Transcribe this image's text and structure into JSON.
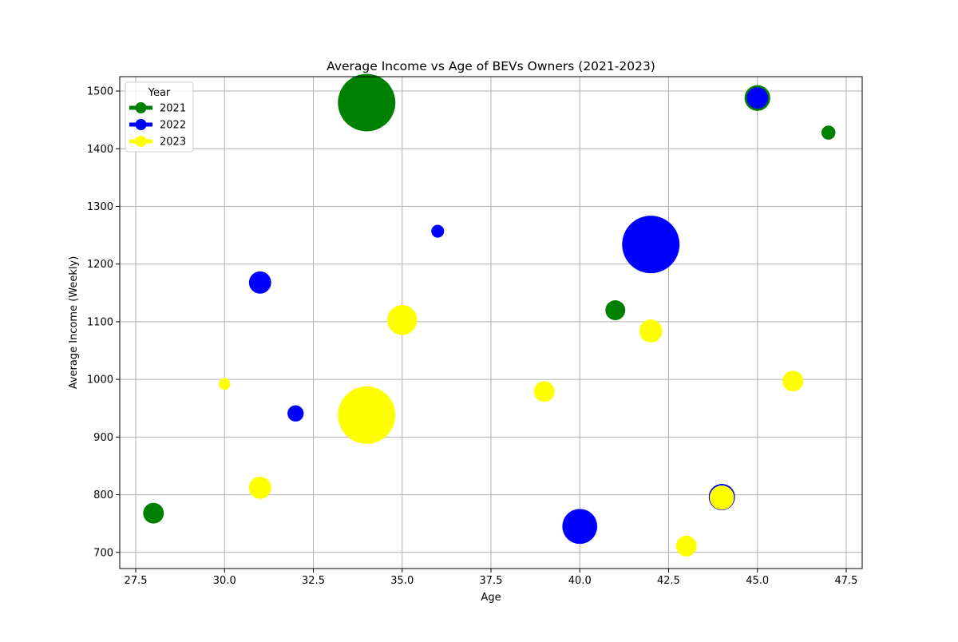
{
  "chart_data": {
    "type": "scatter",
    "title": "Average Income vs Age of BEVs Owners (2021-2023)",
    "xlabel": "Age",
    "ylabel": "Average Income (Weekly)",
    "xlim": [
      27.05,
      47.95
    ],
    "ylim": [
      672,
      1525
    ],
    "x_ticks": [
      27.5,
      30.0,
      32.5,
      35.0,
      37.5,
      40.0,
      42.5,
      45.0,
      47.5
    ],
    "x_tick_labels": [
      "27.5",
      "30.0",
      "32.5",
      "35.0",
      "37.5",
      "40.0",
      "42.5",
      "45.0",
      "47.5"
    ],
    "y_ticks": [
      700,
      800,
      900,
      1000,
      1100,
      1200,
      1300,
      1400,
      1500
    ],
    "y_tick_labels": [
      "700",
      "800",
      "900",
      "1000",
      "1100",
      "1200",
      "1300",
      "1400",
      "1500"
    ],
    "grid": true,
    "legend": {
      "title": "Year",
      "placement": "upper-left"
    },
    "series": [
      {
        "name": "2021",
        "color": "#008000",
        "points": [
          {
            "x": 28,
            "y": 768,
            "size": 0.13
          },
          {
            "x": 34,
            "y": 1480,
            "size": 1.0
          },
          {
            "x": 41,
            "y": 1120,
            "size": 0.12
          },
          {
            "x": 45,
            "y": 1488,
            "size": 0.2
          },
          {
            "x": 47,
            "y": 1428,
            "size": 0.06
          }
        ]
      },
      {
        "name": "2022",
        "color": "#0000ff",
        "points": [
          {
            "x": 31,
            "y": 1168,
            "size": 0.15
          },
          {
            "x": 32,
            "y": 941,
            "size": 0.08
          },
          {
            "x": 36,
            "y": 1257,
            "size": 0.05
          },
          {
            "x": 40,
            "y": 745,
            "size": 0.37
          },
          {
            "x": 42,
            "y": 1234,
            "size": 1.0
          },
          {
            "x": 44,
            "y": 796,
            "size": 0.21
          },
          {
            "x": 45,
            "y": 1488,
            "size": 0.14
          }
        ]
      },
      {
        "name": "2023",
        "color": "#ffff00",
        "points": [
          {
            "x": 30,
            "y": 992,
            "size": 0.04
          },
          {
            "x": 31,
            "y": 812,
            "size": 0.15
          },
          {
            "x": 34,
            "y": 938,
            "size": 1.0
          },
          {
            "x": 35,
            "y": 1103,
            "size": 0.27
          },
          {
            "x": 39,
            "y": 979,
            "size": 0.13
          },
          {
            "x": 42,
            "y": 1084,
            "size": 0.16
          },
          {
            "x": 43,
            "y": 711,
            "size": 0.13
          },
          {
            "x": 44,
            "y": 795,
            "size": 0.18
          },
          {
            "x": 46,
            "y": 997,
            "size": 0.13
          }
        ]
      }
    ]
  }
}
